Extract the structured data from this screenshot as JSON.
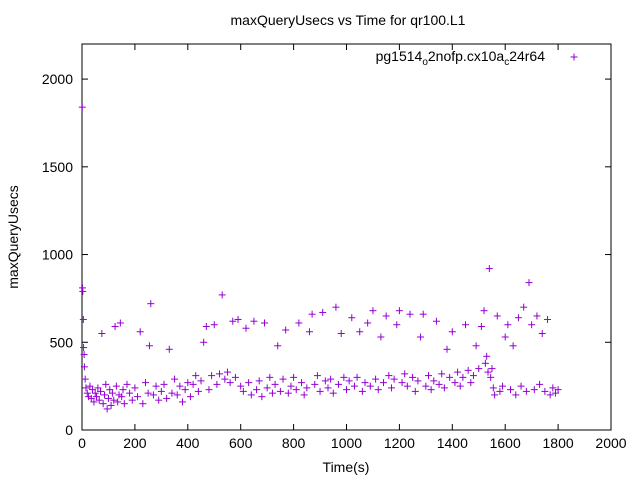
{
  "chart_data": {
    "type": "scatter",
    "title": "maxQueryUsecs vs Time for qr100.L1",
    "xlabel": "Time(s)",
    "ylabel": "maxQueryUsecs",
    "xlim": [
      0,
      2000
    ],
    "ylim": [
      0,
      2200
    ],
    "xticks": [
      0,
      200,
      400,
      600,
      800,
      1000,
      1200,
      1400,
      1600,
      1800,
      2000
    ],
    "yticks": [
      0,
      500,
      1000,
      1500,
      2000
    ],
    "grid": false,
    "legend_position": "top-right",
    "marker": "+",
    "series": [
      {
        "name_parts": [
          "pg1514",
          "o",
          "2nofp.cx10a",
          "c",
          "24r64"
        ],
        "color": "#9400d3",
        "points": [
          [
            1,
            1840
          ],
          [
            2,
            810
          ],
          [
            3,
            790
          ],
          [
            5,
            630
          ],
          [
            6,
            470
          ],
          [
            8,
            430
          ],
          [
            9,
            360
          ],
          [
            12,
            290
          ],
          [
            15,
            240
          ],
          [
            20,
            210
          ],
          [
            25,
            190
          ],
          [
            30,
            250
          ],
          [
            35,
            180
          ],
          [
            40,
            230
          ],
          [
            45,
            160
          ],
          [
            50,
            210
          ],
          [
            55,
            190
          ],
          [
            60,
            240
          ],
          [
            65,
            170
          ],
          [
            70,
            220
          ],
          [
            75,
            550
          ],
          [
            80,
            150
          ],
          [
            85,
            200
          ],
          [
            90,
            260
          ],
          [
            95,
            120
          ],
          [
            100,
            180
          ],
          [
            105,
            230
          ],
          [
            110,
            140
          ],
          [
            115,
            210
          ],
          [
            120,
            170
          ],
          [
            125,
            590
          ],
          [
            130,
            250
          ],
          [
            135,
            160
          ],
          [
            140,
            200
          ],
          [
            145,
            610
          ],
          [
            150,
            190
          ],
          [
            155,
            230
          ],
          [
            160,
            150
          ],
          [
            170,
            260
          ],
          [
            180,
            210
          ],
          [
            190,
            170
          ],
          [
            200,
            240
          ],
          [
            210,
            190
          ],
          [
            220,
            560
          ],
          [
            230,
            150
          ],
          [
            240,
            270
          ],
          [
            250,
            210
          ],
          [
            255,
            480
          ],
          [
            260,
            720
          ],
          [
            270,
            200
          ],
          [
            280,
            250
          ],
          [
            290,
            170
          ],
          [
            300,
            220
          ],
          [
            310,
            260
          ],
          [
            320,
            180
          ],
          [
            330,
            460
          ],
          [
            340,
            210
          ],
          [
            350,
            290
          ],
          [
            360,
            200
          ],
          [
            370,
            250
          ],
          [
            380,
            160
          ],
          [
            390,
            230
          ],
          [
            400,
            270
          ],
          [
            410,
            190
          ],
          [
            420,
            260
          ],
          [
            430,
            310
          ],
          [
            440,
            220
          ],
          [
            450,
            280
          ],
          [
            460,
            500
          ],
          [
            470,
            590
          ],
          [
            480,
            230
          ],
          [
            490,
            310
          ],
          [
            500,
            600
          ],
          [
            510,
            260
          ],
          [
            520,
            320
          ],
          [
            530,
            770
          ],
          [
            540,
            290
          ],
          [
            550,
            330
          ],
          [
            560,
            270
          ],
          [
            570,
            620
          ],
          [
            580,
            300
          ],
          [
            590,
            630
          ],
          [
            600,
            250
          ],
          [
            610,
            220
          ],
          [
            620,
            580
          ],
          [
            630,
            270
          ],
          [
            640,
            200
          ],
          [
            650,
            620
          ],
          [
            660,
            230
          ],
          [
            670,
            280
          ],
          [
            680,
            190
          ],
          [
            690,
            610
          ],
          [
            700,
            240
          ],
          [
            710,
            300
          ],
          [
            720,
            210
          ],
          [
            730,
            260
          ],
          [
            740,
            480
          ],
          [
            750,
            220
          ],
          [
            760,
            290
          ],
          [
            770,
            570
          ],
          [
            780,
            210
          ],
          [
            790,
            250
          ],
          [
            800,
            300
          ],
          [
            810,
            230
          ],
          [
            820,
            610
          ],
          [
            830,
            270
          ],
          [
            840,
            200
          ],
          [
            850,
            240
          ],
          [
            860,
            560
          ],
          [
            870,
            660
          ],
          [
            880,
            260
          ],
          [
            890,
            310
          ],
          [
            900,
            220
          ],
          [
            910,
            670
          ],
          [
            920,
            280
          ],
          [
            930,
            240
          ],
          [
            940,
            290
          ],
          [
            950,
            210
          ],
          [
            960,
            700
          ],
          [
            970,
            260
          ],
          [
            980,
            550
          ],
          [
            990,
            300
          ],
          [
            1000,
            230
          ],
          [
            1010,
            280
          ],
          [
            1020,
            640
          ],
          [
            1030,
            250
          ],
          [
            1040,
            300
          ],
          [
            1050,
            560
          ],
          [
            1060,
            220
          ],
          [
            1070,
            270
          ],
          [
            1080,
            610
          ],
          [
            1090,
            250
          ],
          [
            1100,
            680
          ],
          [
            1110,
            290
          ],
          [
            1120,
            230
          ],
          [
            1130,
            530
          ],
          [
            1140,
            270
          ],
          [
            1150,
            650
          ],
          [
            1160,
            310
          ],
          [
            1170,
            240
          ],
          [
            1180,
            290
          ],
          [
            1190,
            600
          ],
          [
            1200,
            680
          ],
          [
            1210,
            270
          ],
          [
            1220,
            320
          ],
          [
            1230,
            250
          ],
          [
            1240,
            660
          ],
          [
            1250,
            300
          ],
          [
            1260,
            220
          ],
          [
            1270,
            280
          ],
          [
            1280,
            530
          ],
          [
            1290,
            660
          ],
          [
            1300,
            250
          ],
          [
            1310,
            310
          ],
          [
            1320,
            230
          ],
          [
            1330,
            280
          ],
          [
            1340,
            620
          ],
          [
            1350,
            260
          ],
          [
            1360,
            320
          ],
          [
            1370,
            240
          ],
          [
            1380,
            460
          ],
          [
            1390,
            300
          ],
          [
            1400,
            560
          ],
          [
            1410,
            270
          ],
          [
            1420,
            330
          ],
          [
            1430,
            250
          ],
          [
            1440,
            300
          ],
          [
            1450,
            600
          ],
          [
            1460,
            340
          ],
          [
            1470,
            270
          ],
          [
            1480,
            310
          ],
          [
            1490,
            480
          ],
          [
            1500,
            350
          ],
          [
            1510,
            590
          ],
          [
            1520,
            680
          ],
          [
            1525,
            380
          ],
          [
            1530,
            420
          ],
          [
            1535,
            330
          ],
          [
            1540,
            920
          ],
          [
            1545,
            300
          ],
          [
            1550,
            350
          ],
          [
            1555,
            240
          ],
          [
            1560,
            200
          ],
          [
            1570,
            650
          ],
          [
            1580,
            220
          ],
          [
            1590,
            250
          ],
          [
            1600,
            530
          ],
          [
            1610,
            600
          ],
          [
            1620,
            230
          ],
          [
            1630,
            480
          ],
          [
            1640,
            200
          ],
          [
            1650,
            640
          ],
          [
            1660,
            250
          ],
          [
            1670,
            700
          ],
          [
            1680,
            220
          ],
          [
            1690,
            840
          ],
          [
            1700,
            600
          ],
          [
            1710,
            230
          ],
          [
            1720,
            650
          ],
          [
            1730,
            260
          ],
          [
            1740,
            550
          ],
          [
            1750,
            220
          ],
          [
            1760,
            630
          ],
          [
            1770,
            200
          ],
          [
            1780,
            240
          ],
          [
            1790,
            210
          ],
          [
            1800,
            230
          ]
        ]
      }
    ]
  }
}
